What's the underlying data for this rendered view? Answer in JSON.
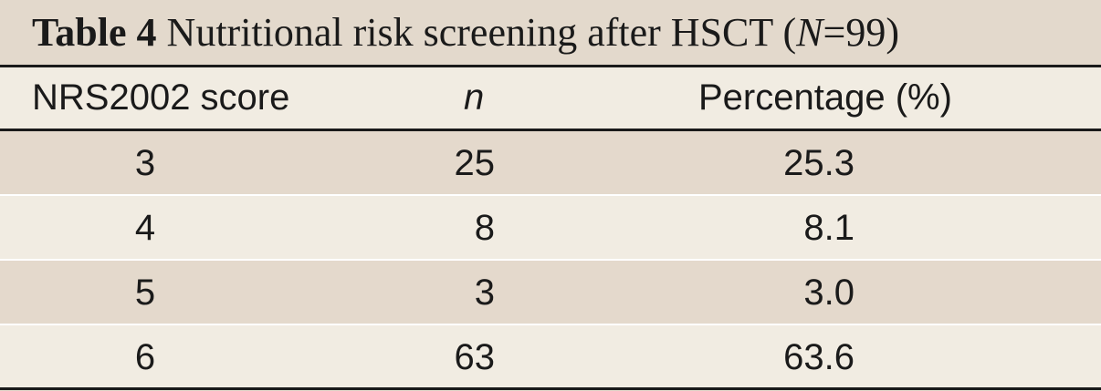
{
  "table": {
    "caption_label": "Table 4",
    "caption_text": "Nutritional risk screening after HSCT (",
    "caption_italic": "N",
    "caption_end": "=99)",
    "headers": [
      "NRS2002 score",
      "n",
      "Percentage (%)"
    ],
    "rows": [
      [
        "3",
        "25",
        "25.3"
      ],
      [
        "4",
        "8",
        "8.1"
      ],
      [
        "5",
        "3",
        "3.0"
      ],
      [
        "6",
        "63",
        "63.6"
      ]
    ]
  }
}
